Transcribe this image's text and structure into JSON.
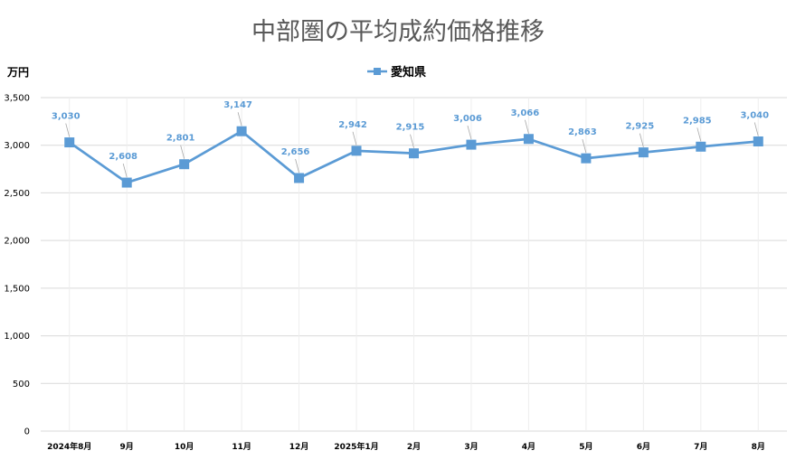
{
  "chart_data": {
    "type": "line",
    "title": "中部圏の平均成約価格推移",
    "ylabel": "万円",
    "xlabel": "",
    "categories": [
      "2024年8月",
      "9月",
      "10月",
      "11月",
      "12月",
      "2025年1月",
      "2月",
      "3月",
      "4月",
      "5月",
      "6月",
      "7月",
      "8月"
    ],
    "series": [
      {
        "name": "愛知県",
        "values": [
          3030,
          2608,
          2801,
          3147,
          2656,
          2942,
          2915,
          3006,
          3066,
          2863,
          2925,
          2985,
          3040
        ],
        "labels": [
          "3,030",
          "2,608",
          "2,801",
          "3,147",
          "2,656",
          "2,942",
          "2,915",
          "3,006",
          "3,066",
          "2,863",
          "2,925",
          "2,985",
          "3,040"
        ]
      }
    ],
    "ylim": [
      0,
      3500
    ],
    "yticks": [
      0,
      500,
      1000,
      1500,
      2000,
      2500,
      3000,
      3500
    ],
    "ytick_labels": [
      "0",
      "500",
      "1,000",
      "1,500",
      "2,000",
      "2,500",
      "3,000",
      "3,500"
    ],
    "grid": true,
    "legend_position": "top",
    "colors": {
      "series": "#5b9bd5",
      "label": "#5b9bd5",
      "grid": "#d9d9d9"
    }
  }
}
